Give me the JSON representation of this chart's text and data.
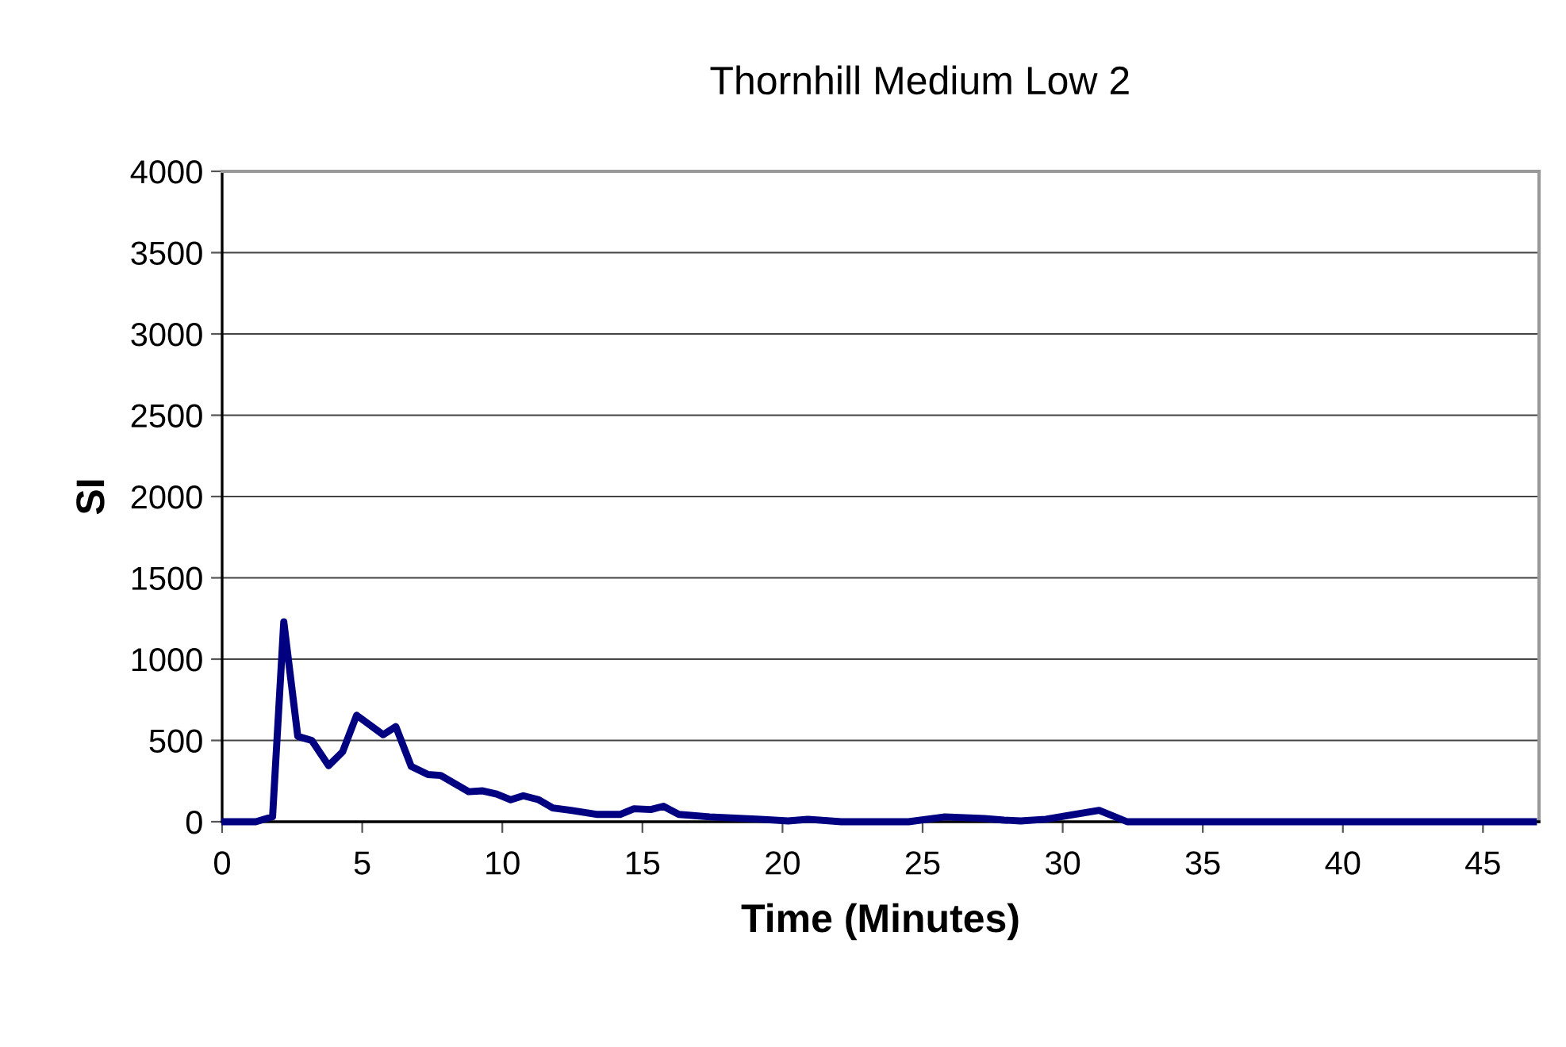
{
  "chart_data": {
    "type": "line",
    "title": "Thornhill Medium Low 2",
    "xlabel": "Time (Minutes)",
    "ylabel": "SI",
    "xlim": [
      0,
      47
    ],
    "ylim": [
      0,
      4000
    ],
    "xticks": [
      0,
      5,
      10,
      15,
      20,
      25,
      30,
      35,
      40,
      45
    ],
    "yticks": [
      0,
      500,
      1000,
      1500,
      2000,
      2500,
      3000,
      3500,
      4000
    ],
    "grid": "y",
    "legend": false,
    "marker": "none",
    "line_style": "solid",
    "series": [
      {
        "color": "#000080",
        "x": [
          0.1,
          1.2,
          1.8,
          2.2,
          2.7,
          3.2,
          3.8,
          4.3,
          4.8,
          5.75,
          6.2,
          6.75,
          7.35,
          7.8,
          8.3,
          8.8,
          9.3,
          9.8,
          10.3,
          10.75,
          11.3,
          11.8,
          12.45,
          13.4,
          14.2,
          14.7,
          15.3,
          15.75,
          16.3,
          17.4,
          19.2,
          20.2,
          20.9,
          22.1,
          24.0,
          24.5,
          25.8,
          27.2,
          27.9,
          28.5,
          29.4,
          30.4,
          31.3,
          32.3,
          46.8
        ],
        "values": [
          0,
          0,
          30,
          1230,
          525,
          500,
          345,
          430,
          655,
          535,
          585,
          340,
          290,
          285,
          235,
          185,
          190,
          170,
          135,
          160,
          135,
          85,
          70,
          45,
          45,
          80,
          75,
          95,
          45,
          30,
          15,
          5,
          15,
          0,
          0,
          0,
          30,
          20,
          10,
          5,
          15,
          45,
          70,
          0,
          0
        ]
      }
    ]
  }
}
